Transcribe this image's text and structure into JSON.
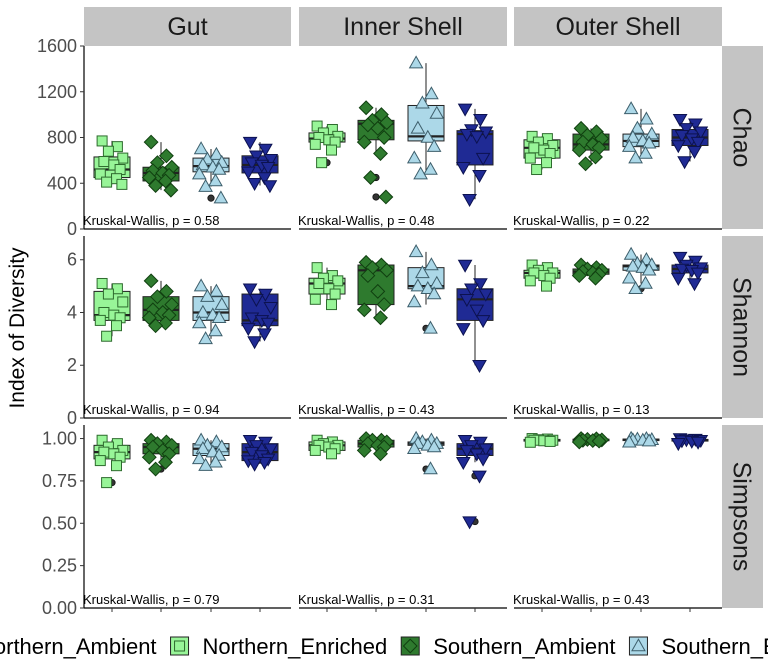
{
  "chart_data": {
    "type": "boxplot",
    "ylabel": "Index of Diversity",
    "columns": [
      "Gut",
      "Inner Shell",
      "Outer Shell"
    ],
    "rows": [
      "Chao",
      "Shannon",
      "Simpsons"
    ],
    "groups": [
      "Northern_Ambient",
      "Northern_Enriched",
      "Southern_Ambient",
      "Southern_Enriched"
    ],
    "legend_position": "bottom",
    "grid": false,
    "styles": {
      "Northern_Ambient": {
        "fill": "#98f598",
        "stroke": "#2e6b2e",
        "shape": "square"
      },
      "Northern_Enriched": {
        "fill": "#2e7a2e",
        "stroke": "#103f10",
        "shape": "diamond"
      },
      "Southern_Ambient": {
        "fill": "#acd8e8",
        "stroke": "#3d5e6b",
        "shape": "triangle-up"
      },
      "Southern_Enriched": {
        "fill": "#1f2a94",
        "stroke": "#0c1250",
        "shape": "triangle-down"
      }
    },
    "y_axes": {
      "Chao": {
        "ylim": [
          0,
          1600
        ],
        "ticks": [
          0,
          400,
          800,
          1200,
          1600
        ],
        "tick_labels": [
          "0",
          "400",
          "800",
          "1200",
          "1600"
        ]
      },
      "Shannon": {
        "ylim": [
          0,
          6.9
        ],
        "ticks": [
          0,
          2,
          4,
          6
        ],
        "tick_labels": [
          "0",
          "2",
          "4",
          "6"
        ]
      },
      "Simpsons": {
        "ylim": [
          0,
          1.08
        ],
        "ticks": [
          0,
          0.25,
          0.5,
          0.75,
          1.0
        ],
        "tick_labels": [
          "0.00",
          "0.25",
          "0.50",
          "0.75",
          "1.00"
        ]
      }
    },
    "annotations": {
      "Chao": [
        "Kruskal-Wallis, p = 0.58",
        "Kruskal-Wallis, p = 0.48",
        "Kruskal-Wallis, p = 0.22"
      ],
      "Shannon": [
        "Kruskal-Wallis, p = 0.94",
        "Kruskal-Wallis, p = 0.43",
        "Kruskal-Wallis, p = 0.13"
      ],
      "Simpsons": [
        "Kruskal-Wallis, p = 0.79",
        "Kruskal-Wallis, p = 0.31",
        "Kruskal-Wallis, p = 0.43"
      ]
    },
    "boxes": {
      "Chao": {
        "Gut": [
          {
            "q1": 450,
            "med": 520,
            "q3": 630,
            "wlo": 390,
            "whi": 770,
            "out": [],
            "pts": [
              770,
              720,
              680,
              620,
              590,
              560,
              520,
              480,
              440,
              410,
              390
            ]
          },
          {
            "q1": 420,
            "med": 490,
            "q3": 540,
            "wlo": 340,
            "whi": 760,
            "out": [],
            "pts": [
              760,
              640,
              580,
              540,
              510,
              490,
              470,
              450,
              420,
              380,
              340
            ]
          },
          {
            "q1": 500,
            "med": 550,
            "q3": 620,
            "wlo": 370,
            "whi": 700,
            "out": [
              270
            ],
            "pts": [
              700,
              650,
              610,
              580,
              560,
              540,
              520,
              480,
              420,
              370,
              270
            ]
          },
          {
            "q1": 490,
            "med": 560,
            "q3": 640,
            "wlo": 380,
            "whi": 760,
            "out": [],
            "pts": [
              760,
              700,
              640,
              610,
              580,
              560,
              540,
              500,
              450,
              400,
              380
            ]
          }
        ],
        "Inner Shell": [
          {
            "q1": 760,
            "med": 790,
            "q3": 840,
            "wlo": 690,
            "whi": 900,
            "out": [
              580
            ],
            "pts": [
              900,
              870,
              840,
              810,
              800,
              780,
              760,
              740,
              690,
              580
            ]
          },
          {
            "q1": 780,
            "med": 920,
            "q3": 950,
            "wlo": 660,
            "whi": 1060,
            "out": [
              450,
              280
            ],
            "pts": [
              1060,
              1000,
              950,
              930,
              910,
              880,
              800,
              760,
              660,
              450,
              280
            ]
          },
          {
            "q1": 770,
            "med": 810,
            "q3": 1080,
            "wlo": 480,
            "whi": 1450,
            "out": [],
            "pts": [
              1450,
              1180,
              1100,
              1010,
              880,
              800,
              720,
              620,
              520,
              480
            ]
          },
          {
            "q1": 560,
            "med": 830,
            "q3": 860,
            "wlo": 260,
            "whi": 1050,
            "out": [],
            "pts": [
              1050,
              960,
              870,
              850,
              830,
              810,
              620,
              540,
              470,
              260
            ]
          }
        ],
        "Outer Shell": [
          {
            "q1": 620,
            "med": 710,
            "q3": 780,
            "wlo": 520,
            "whi": 810,
            "out": [],
            "pts": [
              810,
              790,
              760,
              730,
              710,
              690,
              660,
              620,
              580,
              520
            ]
          },
          {
            "q1": 690,
            "med": 740,
            "q3": 830,
            "wlo": 570,
            "whi": 880,
            "out": [],
            "pts": [
              880,
              850,
              820,
              790,
              760,
              740,
              710,
              690,
              630,
              570
            ]
          },
          {
            "q1": 720,
            "med": 770,
            "q3": 830,
            "wlo": 620,
            "whi": 1050,
            "out": [],
            "pts": [
              1050,
              960,
              880,
              830,
              800,
              770,
              750,
              720,
              660,
              620
            ]
          },
          {
            "q1": 730,
            "med": 800,
            "q3": 870,
            "wlo": 590,
            "whi": 960,
            "out": [],
            "pts": [
              960,
              920,
              880,
              850,
              820,
              790,
              760,
              730,
              680,
              590
            ]
          }
        ]
      },
      "Shannon": {
        "Gut": [
          {
            "q1": 3.7,
            "med": 3.9,
            "q3": 4.8,
            "wlo": 3.1,
            "whi": 5.1,
            "out": [],
            "pts": [
              5.1,
              4.9,
              4.7,
              4.4,
              4.0,
              3.9,
              3.8,
              3.7,
              3.5,
              3.1
            ]
          },
          {
            "q1": 3.7,
            "med": 4.1,
            "q3": 4.6,
            "wlo": 3.5,
            "whi": 5.2,
            "out": [],
            "pts": [
              5.2,
              4.8,
              4.6,
              4.3,
              4.1,
              4.0,
              3.9,
              3.8,
              3.6,
              3.5
            ]
          },
          {
            "q1": 3.7,
            "med": 4.0,
            "q3": 4.6,
            "wlo": 3.0,
            "whi": 5.0,
            "out": [],
            "pts": [
              5.0,
              4.8,
              4.6,
              4.3,
              4.0,
              3.9,
              3.8,
              3.6,
              3.3,
              3.0
            ]
          },
          {
            "q1": 3.5,
            "med": 3.7,
            "q3": 4.7,
            "wlo": 2.9,
            "whi": 4.9,
            "out": [],
            "pts": [
              4.9,
              4.7,
              4.5,
              4.2,
              3.8,
              3.7,
              3.6,
              3.4,
              3.2,
              2.9
            ]
          }
        ],
        "Inner Shell": [
          {
            "q1": 4.7,
            "med": 5.1,
            "q3": 5.3,
            "wlo": 4.3,
            "whi": 5.7,
            "out": [],
            "pts": [
              5.7,
              5.4,
              5.3,
              5.2,
              5.1,
              4.9,
              4.7,
              4.5,
              4.3
            ]
          },
          {
            "q1": 4.3,
            "med": 5.6,
            "q3": 5.8,
            "wlo": 3.8,
            "whi": 5.9,
            "out": [],
            "pts": [
              5.9,
              5.8,
              5.7,
              5.6,
              5.4,
              4.8,
              4.3,
              4.1,
              3.8
            ]
          },
          {
            "q1": 4.9,
            "med": 5.0,
            "q3": 5.7,
            "wlo": 4.3,
            "whi": 6.3,
            "out": [
              3.4
            ],
            "pts": [
              6.3,
              5.8,
              5.5,
              5.1,
              5.0,
              4.9,
              4.7,
              4.4,
              3.4
            ]
          },
          {
            "q1": 3.7,
            "med": 4.5,
            "q3": 4.9,
            "wlo": 2.0,
            "whi": 5.8,
            "out": [],
            "pts": [
              5.8,
              5.1,
              4.9,
              4.7,
              4.5,
              4.1,
              3.7,
              3.4,
              2.0
            ]
          }
        ],
        "Outer Shell": [
          {
            "q1": 5.3,
            "med": 5.5,
            "q3": 5.6,
            "wlo": 5.0,
            "whi": 5.8,
            "out": [],
            "pts": [
              5.8,
              5.7,
              5.6,
              5.5,
              5.5,
              5.4,
              5.3,
              5.2,
              5.0
            ]
          },
          {
            "q1": 5.45,
            "med": 5.55,
            "q3": 5.65,
            "wlo": 5.3,
            "whi": 5.8,
            "out": [],
            "pts": [
              5.8,
              5.7,
              5.65,
              5.6,
              5.55,
              5.5,
              5.45,
              5.4,
              5.3
            ]
          },
          {
            "q1": 5.6,
            "med": 5.75,
            "q3": 5.8,
            "wlo": 5.1,
            "whi": 6.2,
            "out": [
              4.9
            ],
            "pts": [
              6.2,
              6.0,
              5.85,
              5.8,
              5.75,
              5.7,
              5.6,
              5.3,
              5.1,
              4.9
            ]
          },
          {
            "q1": 5.5,
            "med": 5.65,
            "q3": 5.8,
            "wlo": 5.1,
            "whi": 6.1,
            "out": [],
            "pts": [
              6.1,
              5.95,
              5.8,
              5.7,
              5.65,
              5.6,
              5.5,
              5.3,
              5.1
            ]
          }
        ]
      },
      "Simpsons": {
        "Gut": [
          {
            "q1": 0.88,
            "med": 0.92,
            "q3": 0.96,
            "wlo": 0.84,
            "whi": 0.99,
            "out": [
              0.74
            ],
            "pts": [
              0.99,
              0.97,
              0.95,
              0.93,
              0.92,
              0.91,
              0.89,
              0.87,
              0.84,
              0.74
            ]
          },
          {
            "q1": 0.91,
            "med": 0.95,
            "q3": 0.97,
            "wlo": 0.86,
            "whi": 0.99,
            "out": [
              0.82
            ],
            "pts": [
              0.99,
              0.98,
              0.97,
              0.96,
              0.95,
              0.93,
              0.91,
              0.89,
              0.86,
              0.82
            ]
          },
          {
            "q1": 0.9,
            "med": 0.94,
            "q3": 0.97,
            "wlo": 0.84,
            "whi": 0.99,
            "out": [],
            "pts": [
              0.99,
              0.98,
              0.96,
              0.95,
              0.94,
              0.92,
              0.9,
              0.88,
              0.86,
              0.84
            ]
          },
          {
            "q1": 0.87,
            "med": 0.92,
            "q3": 0.97,
            "wlo": 0.85,
            "whi": 0.99,
            "out": [],
            "pts": [
              0.99,
              0.98,
              0.96,
              0.94,
              0.92,
              0.9,
              0.88,
              0.87,
              0.86,
              0.85
            ]
          }
        ],
        "Inner Shell": [
          {
            "q1": 0.93,
            "med": 0.96,
            "q3": 0.98,
            "wlo": 0.91,
            "whi": 0.99,
            "out": [],
            "pts": [
              0.99,
              0.98,
              0.97,
              0.96,
              0.96,
              0.95,
              0.94,
              0.93,
              0.91
            ]
          },
          {
            "q1": 0.95,
            "med": 0.97,
            "q3": 0.99,
            "wlo": 0.91,
            "whi": 1.0,
            "out": [],
            "pts": [
              1.0,
              0.99,
              0.99,
              0.98,
              0.97,
              0.96,
              0.95,
              0.93,
              0.91
            ]
          },
          {
            "q1": 0.96,
            "med": 0.97,
            "q3": 0.98,
            "wlo": 0.94,
            "whi": 1.0,
            "out": [
              0.82
            ],
            "pts": [
              1.0,
              0.99,
              0.98,
              0.97,
              0.97,
              0.96,
              0.95,
              0.94,
              0.82
            ]
          },
          {
            "q1": 0.9,
            "med": 0.94,
            "q3": 0.97,
            "wlo": 0.86,
            "whi": 0.99,
            "out": [
              0.78,
              0.51
            ],
            "pts": [
              0.99,
              0.98,
              0.96,
              0.94,
              0.93,
              0.91,
              0.88,
              0.86,
              0.78,
              0.51
            ]
          }
        ],
        "Outer Shell": [
          {
            "q1": 0.985,
            "med": 0.99,
            "q3": 0.995,
            "wlo": 0.975,
            "whi": 1.0,
            "out": [],
            "pts": [
              1.0,
              0.997,
              0.993,
              0.99,
              0.99,
              0.987,
              0.983,
              0.978
            ]
          },
          {
            "q1": 0.988,
            "med": 0.992,
            "q3": 0.996,
            "wlo": 0.98,
            "whi": 1.0,
            "out": [],
            "pts": [
              1.0,
              0.998,
              0.995,
              0.992,
              0.99,
              0.988,
              0.985,
              0.98
            ]
          },
          {
            "q1": 0.988,
            "med": 0.993,
            "q3": 0.997,
            "wlo": 0.978,
            "whi": 1.0,
            "out": [],
            "pts": [
              1.0,
              0.999,
              0.996,
              0.993,
              0.991,
              0.989,
              0.985,
              0.978
            ]
          },
          {
            "q1": 0.985,
            "med": 0.99,
            "q3": 0.995,
            "wlo": 0.972,
            "whi": 1.0,
            "out": [],
            "pts": [
              1.0,
              0.997,
              0.994,
              0.99,
              0.988,
              0.985,
              0.98,
              0.972
            ]
          }
        ]
      }
    }
  }
}
